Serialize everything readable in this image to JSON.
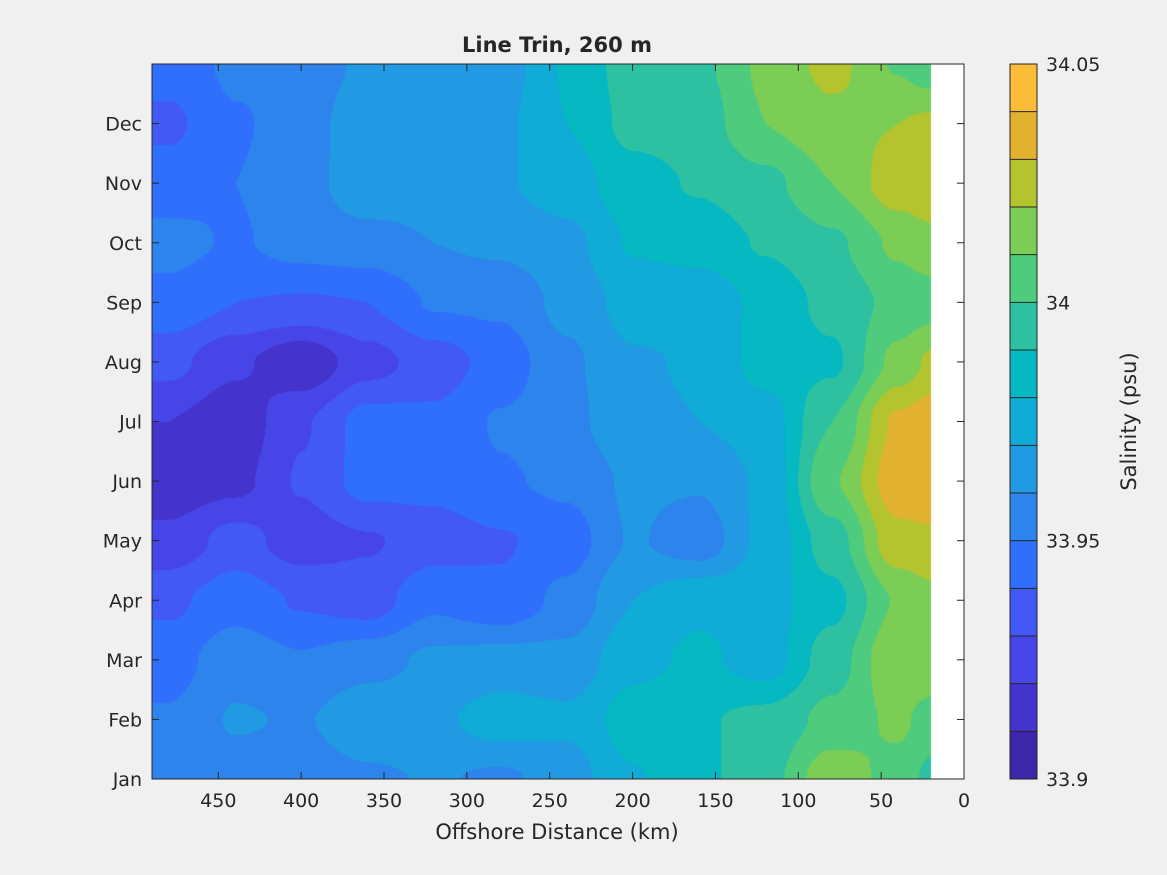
{
  "chart_data": {
    "type": "heatmap",
    "subtype": "filled-contour",
    "title": "Line Trin, 260 m",
    "xlabel": "Offshore Distance (km)",
    "ylabel": "",
    "xlim": [
      0,
      490
    ],
    "x_reversed": true,
    "x_ticks": [
      450,
      400,
      350,
      300,
      250,
      200,
      150,
      100,
      50,
      0
    ],
    "y_ticks": [
      "Jan",
      "Feb",
      "Mar",
      "Apr",
      "May",
      "Jun",
      "Jul",
      "Aug",
      "Sep",
      "Oct",
      "Nov",
      "Dec"
    ],
    "grid": false,
    "colorbar": {
      "label": "Salinity (psu)",
      "range": [
        33.9,
        34.05
      ],
      "level_step": 0.01,
      "tick_values": [
        33.9,
        33.95,
        34,
        34.05
      ],
      "tick_labels": [
        "33.9",
        "33.95",
        "34",
        "34.05"
      ],
      "colormap": [
        "#3e26a8",
        "#4433cd",
        "#4745e7",
        "#4259f6",
        "#2f6ffc",
        "#2d84ec",
        "#2299e3",
        "#10abd6",
        "#05b8c2",
        "#2dc1a2",
        "#4ecb7c",
        "#7ccd55",
        "#b4c42e",
        "#e1b12f",
        "#fbbd39",
        "#f6dd24"
      ]
    },
    "no_data_region_km": [
      0,
      20
    ],
    "x_km": [
      480,
      440,
      400,
      360,
      320,
      280,
      240,
      200,
      160,
      120,
      80,
      40,
      20
    ],
    "y_month": [
      1,
      2,
      3,
      4,
      5,
      6,
      7,
      8,
      9,
      10,
      11,
      12,
      13
    ],
    "z_salinity": [
      [
        33.951,
        33.955,
        33.954,
        33.958,
        33.961,
        33.958,
        33.965,
        33.979,
        33.988,
        33.996,
        34.017,
        34.006,
        33.997
      ],
      [
        33.951,
        33.961,
        33.959,
        33.968,
        33.968,
        33.975,
        33.972,
        33.985,
        33.989,
        33.993,
        34.003,
        34.012,
        34.006
      ],
      [
        33.946,
        33.956,
        33.951,
        33.956,
        33.962,
        33.964,
        33.963,
        33.977,
        33.982,
        33.975,
        33.995,
        34.019,
        34.018
      ],
      [
        33.938,
        33.946,
        33.939,
        33.935,
        33.948,
        33.942,
        33.953,
        33.97,
        33.978,
        33.976,
        33.987,
        34.011,
        34.017
      ],
      [
        33.923,
        33.934,
        33.925,
        33.929,
        33.935,
        33.939,
        33.945,
        33.961,
        33.954,
        33.973,
        33.995,
        34.027,
        34.028
      ],
      [
        33.913,
        33.917,
        33.931,
        33.944,
        33.943,
        33.949,
        33.952,
        33.962,
        33.961,
        33.972,
        34.009,
        34.036,
        34.038
      ],
      [
        33.92,
        33.913,
        33.929,
        33.944,
        33.942,
        33.951,
        33.957,
        33.968,
        33.97,
        33.975,
        34.0,
        34.032,
        34.036
      ],
      [
        33.933,
        33.922,
        33.912,
        33.926,
        33.935,
        33.944,
        33.958,
        33.969,
        33.971,
        33.984,
        33.988,
        34.013,
        34.022
      ],
      [
        33.947,
        33.94,
        33.939,
        33.94,
        33.951,
        33.952,
        33.963,
        33.974,
        33.973,
        33.983,
        33.993,
        34.003,
        34.005
      ],
      [
        33.953,
        33.949,
        33.954,
        33.956,
        33.96,
        33.962,
        33.967,
        33.981,
        33.984,
        33.991,
        33.998,
        34.012,
        34.017
      ],
      [
        33.945,
        33.95,
        33.956,
        33.967,
        33.965,
        33.969,
        33.975,
        33.986,
        33.991,
        33.997,
        34.01,
        34.026,
        34.028
      ],
      [
        33.938,
        33.949,
        33.954,
        33.969,
        33.97,
        33.968,
        33.98,
        33.993,
        33.995,
        34.01,
        34.017,
        34.02,
        34.022
      ],
      [
        33.944,
        33.952,
        33.951,
        33.963,
        33.966,
        33.965,
        33.981,
        33.995,
        33.998,
        34.012,
        34.023,
        34.009,
        34.003
      ]
    ]
  }
}
